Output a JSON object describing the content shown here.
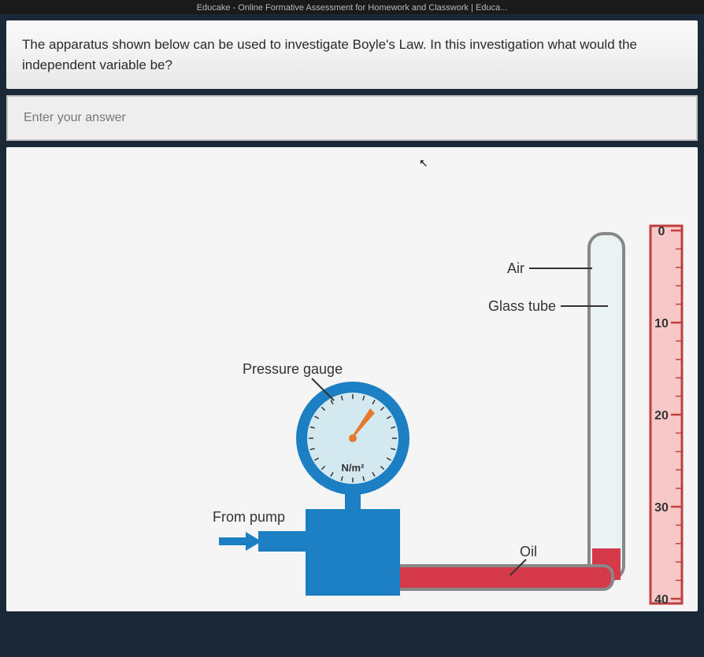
{
  "browser": {
    "title": "Educake - Online Formative Assessment for Homework and Classwork | Educa..."
  },
  "question": {
    "text": "The apparatus shown below can be used to investigate Boyle's Law. In this investigation what would the independent variable be?"
  },
  "answer": {
    "placeholder": "Enter your answer",
    "value": ""
  },
  "diagram": {
    "labels": {
      "air": "Air",
      "glass_tube": "Glass tube",
      "pressure_gauge": "Pressure gauge",
      "from_pump": "From pump",
      "oil": "Oil",
      "gauge_unit": "N/m²"
    },
    "ruler": {
      "ticks": [
        "0",
        "10",
        "20",
        "30",
        "40"
      ],
      "background": "#f8c8c8",
      "border": "#c04040"
    },
    "colors": {
      "gauge_ring": "#1c7fc4",
      "gauge_face": "#d4e8f0",
      "gauge_needle": "#e67a2e",
      "pump_body": "#1c7fc4",
      "pump_arrow": "#1c7fc4",
      "oil": "#d43a4a",
      "tube_border": "#888888",
      "tube_fill": "#eaf2f4",
      "ruler_bg": "#f8c8c8",
      "ruler_border": "#c04040"
    },
    "geometry": {
      "ruler_major_step": 10,
      "ruler_minor_per_major": 5,
      "gauge_tick_count": 24
    }
  }
}
